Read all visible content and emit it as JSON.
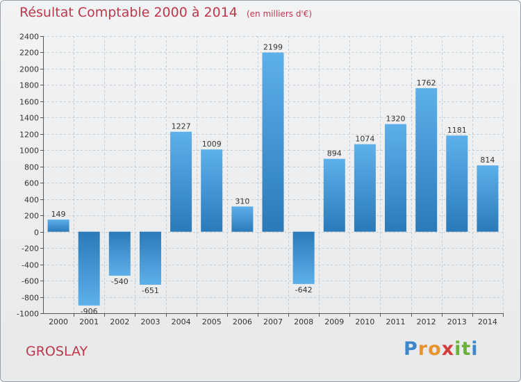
{
  "page": {
    "title": "Résultat Comptable 2000 à 2014",
    "subtitle": "(en milliers d'€)",
    "commune": "GROSLAY",
    "brand": {
      "letters": [
        "P",
        "r",
        "o",
        "x",
        "i",
        "t",
        "i"
      ],
      "colors": [
        "#3f87c8",
        "#e8932e",
        "#e8932e",
        "#d63b3b",
        "#6bb03b",
        "#6bb03b",
        "#3f87c8"
      ]
    }
  },
  "chart_data": {
    "type": "bar",
    "title": "Résultat Comptable 2000 à 2014",
    "subtitle": "(en milliers d'€)",
    "categories": [
      "2000",
      "2001",
      "2002",
      "2003",
      "2004",
      "2005",
      "2006",
      "2007",
      "2008",
      "2009",
      "2010",
      "2011",
      "2012",
      "2013",
      "2014"
    ],
    "values": [
      149,
      -906,
      -540,
      -651,
      1227,
      1009,
      310,
      2199,
      -642,
      894,
      1074,
      1320,
      1762,
      1181,
      814
    ],
    "ylim": [
      -1000,
      2400
    ],
    "yticks": [
      -1000,
      -800,
      -600,
      -400,
      -200,
      0,
      200,
      400,
      600,
      800,
      1000,
      1200,
      1400,
      1600,
      1800,
      2000,
      2200,
      2400
    ],
    "xlabel": "",
    "ylabel": "",
    "grid": true,
    "bar_color_light": "#5aace6",
    "bar_color_dark": "#2b7cbc"
  }
}
